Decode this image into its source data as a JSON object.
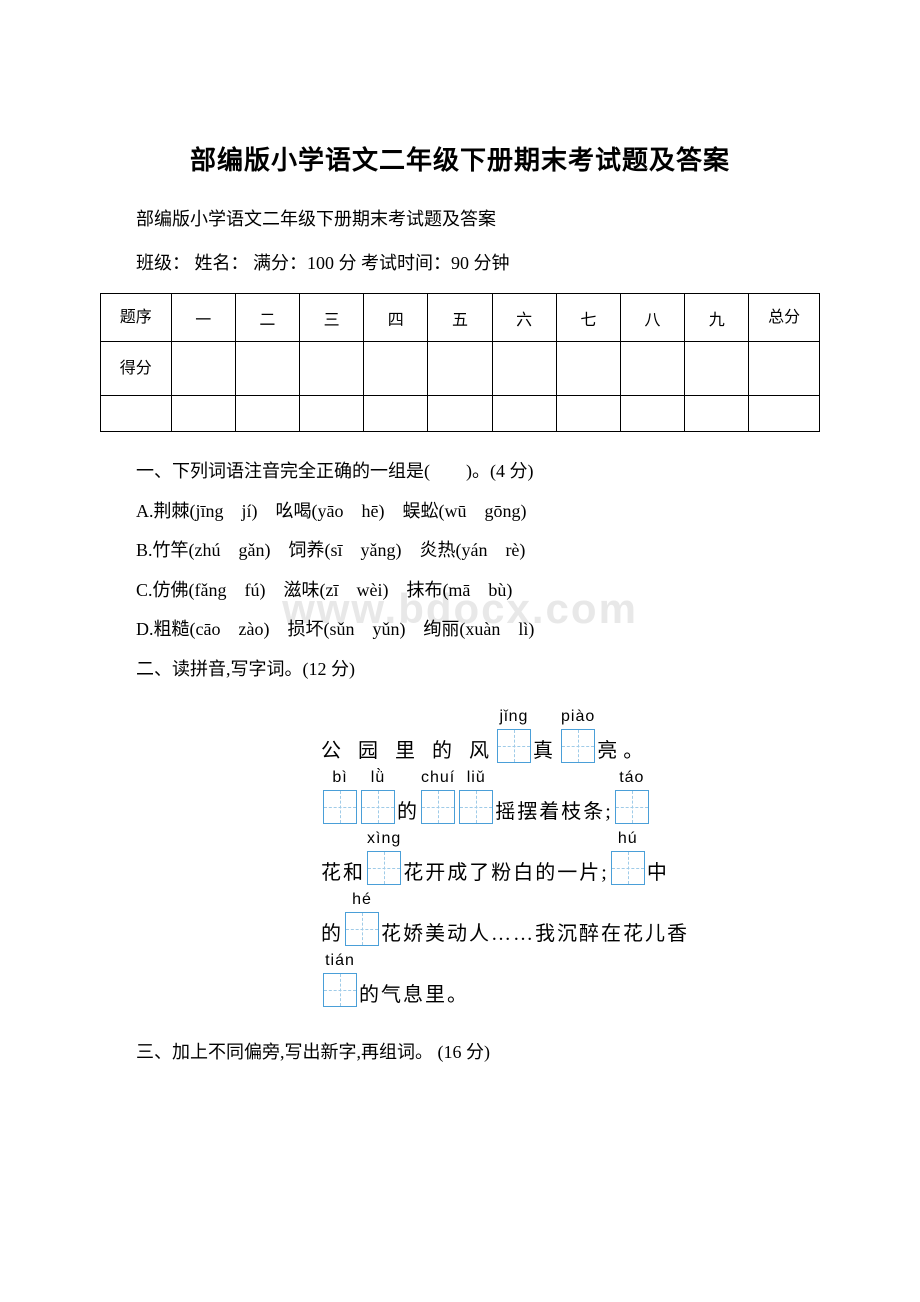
{
  "title": "部编版小学语文二年级下册期末考试题及答案",
  "subtitle": "部编版小学语文二年级下册期末考试题及答案",
  "meta": "班级：  姓名：  满分：100 分 考试时间：90 分钟",
  "table": {
    "row1": [
      "题序",
      "一",
      "二",
      "三",
      "四",
      "五",
      "六",
      "七",
      "八",
      "九",
      "总分"
    ],
    "row2_label": "得分"
  },
  "q1": {
    "stem": "一、下列词语注音完全正确的一组是(　　)。(4 分)",
    "A": "A.荆棘(jīng　jí)　吆喝(yāo　hē)　蜈蚣(wū　gōng)",
    "B": "B.竹竿(zhú　gǎn)　饲养(sī　yǎng)　炎热(yán　rè)",
    "C": "C.仿佛(fǎng　fú)　滋味(zī　wèi)　抹布(mā　bù)",
    "D": "D.粗糙(cāo　zào)　损坏(sǔn　yǔn)　绚丽(xuàn　lì)"
  },
  "q2": {
    "stem": "二、读拼音,写字词。(12 分)",
    "line1": {
      "t1": "公 园 里 的 风",
      "py1": "jǐng",
      "t2": "真",
      "py2": "piào",
      "t3": "亮。"
    },
    "line2": {
      "py1": "bì",
      "py2": "lǜ",
      "t1": "的",
      "py3": "chuí",
      "py4": "liǔ",
      "t2": "摇摆着枝条;",
      "py5": "táo"
    },
    "line3": {
      "t1": "花和",
      "py1": "xìng",
      "t2": "花开成了粉白的一片;",
      "py2": "hú",
      "t3": "中"
    },
    "line4": {
      "t1": "的",
      "py1": "hé",
      "t2": "花娇美动人……我沉醉在花儿香"
    },
    "line5": {
      "py1": "tián",
      "t1": "的气息里。"
    }
  },
  "q3": "三、加上不同偏旁,写出新字,再组词。 (16 分)",
  "watermark": "www.bdocx.com",
  "colors": {
    "tianzi_border": "#4a9fd8",
    "tianzi_dash": "#9fcbe8",
    "watermark": "#e8e8e8",
    "text": "#000000",
    "background": "#ffffff"
  }
}
